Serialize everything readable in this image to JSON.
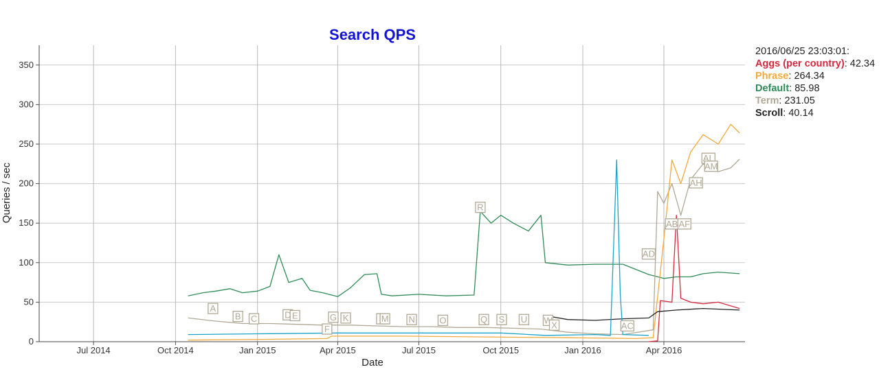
{
  "chart_data": {
    "type": "line",
    "title": "Search QPS",
    "xlabel": "Date",
    "ylabel": "Queries / sec",
    "ylim": [
      0,
      375
    ],
    "yticks": [
      0,
      50,
      100,
      150,
      200,
      250,
      300,
      350
    ],
    "xlim": [
      "2014-05-01",
      "2016-07-01"
    ],
    "xticks": [
      {
        "date": "2014-07-01",
        "label": "Jul 2014"
      },
      {
        "date": "2014-10-01",
        "label": "Oct 2014"
      },
      {
        "date": "2015-01-01",
        "label": "Jan 2015"
      },
      {
        "date": "2015-04-01",
        "label": "Apr 2015"
      },
      {
        "date": "2015-07-01",
        "label": "Jul 2015"
      },
      {
        "date": "2015-10-01",
        "label": "Oct 2015"
      },
      {
        "date": "2016-01-01",
        "label": "Jan 2016"
      },
      {
        "date": "2016-04-01",
        "label": "Apr 2016"
      }
    ],
    "grid": true,
    "legend_placement": "top-right outside",
    "legend_timestamp": "2016/06/25 23:03:01:",
    "series": [
      {
        "name": "Default",
        "color": "#2e8b57",
        "value_text": "85.98",
        "points": [
          [
            "2014-10-15",
            58
          ],
          [
            "2014-11-01",
            62
          ],
          [
            "2014-11-15",
            64
          ],
          [
            "2014-12-01",
            67
          ],
          [
            "2014-12-15",
            62
          ],
          [
            "2015-01-01",
            64
          ],
          [
            "2015-01-15",
            70
          ],
          [
            "2015-01-25",
            110
          ],
          [
            "2015-02-05",
            75
          ],
          [
            "2015-02-20",
            80
          ],
          [
            "2015-03-01",
            65
          ],
          [
            "2015-03-15",
            62
          ],
          [
            "2015-04-01",
            57
          ],
          [
            "2015-04-15",
            68
          ],
          [
            "2015-05-01",
            85
          ],
          [
            "2015-05-15",
            86
          ],
          [
            "2015-05-20",
            60
          ],
          [
            "2015-06-01",
            58
          ],
          [
            "2015-07-01",
            60
          ],
          [
            "2015-08-01",
            58
          ],
          [
            "2015-09-01",
            59
          ],
          [
            "2015-09-08",
            165
          ],
          [
            "2015-09-20",
            150
          ],
          [
            "2015-10-01",
            160
          ],
          [
            "2015-10-15",
            150
          ],
          [
            "2015-11-01",
            140
          ],
          [
            "2015-11-15",
            160
          ],
          [
            "2015-11-20",
            100
          ],
          [
            "2015-12-15",
            97
          ],
          [
            "2016-01-15",
            98
          ],
          [
            "2016-02-15",
            98
          ],
          [
            "2016-03-15",
            85
          ],
          [
            "2016-04-01",
            80
          ],
          [
            "2016-04-15",
            82
          ],
          [
            "2016-05-01",
            82
          ],
          [
            "2016-05-15",
            86
          ],
          [
            "2016-06-01",
            88
          ],
          [
            "2016-06-25",
            86
          ]
        ]
      },
      {
        "name": "Term",
        "color": "#b0a894",
        "value_text": "231.05",
        "points": [
          [
            "2014-10-15",
            30
          ],
          [
            "2014-11-15",
            26
          ],
          [
            "2014-12-15",
            23
          ],
          [
            "2015-01-15",
            23
          ],
          [
            "2015-02-15",
            22
          ],
          [
            "2015-03-15",
            21
          ],
          [
            "2015-04-15",
            21
          ],
          [
            "2015-05-15",
            20
          ],
          [
            "2015-06-15",
            19
          ],
          [
            "2015-07-15",
            19
          ],
          [
            "2015-08-15",
            18
          ],
          [
            "2015-09-15",
            18
          ],
          [
            "2015-10-15",
            17
          ],
          [
            "2015-11-15",
            16
          ],
          [
            "2015-12-15",
            12
          ],
          [
            "2016-01-15",
            10
          ],
          [
            "2016-02-15",
            9
          ],
          [
            "2016-03-20",
            15
          ],
          [
            "2016-03-25",
            190
          ],
          [
            "2016-04-01",
            175
          ],
          [
            "2016-04-10",
            200
          ],
          [
            "2016-04-20",
            160
          ],
          [
            "2016-05-01",
            205
          ],
          [
            "2016-05-15",
            225
          ],
          [
            "2016-06-01",
            215
          ],
          [
            "2016-06-15",
            220
          ],
          [
            "2016-06-25",
            231
          ]
        ]
      },
      {
        "name": "Phrase",
        "color": "#f2a83a",
        "value_text": "264.34",
        "points": [
          [
            "2014-10-15",
            2
          ],
          [
            "2015-01-15",
            3
          ],
          [
            "2015-03-20",
            4
          ],
          [
            "2015-03-25",
            7
          ],
          [
            "2015-06-15",
            7
          ],
          [
            "2015-09-15",
            6
          ],
          [
            "2015-12-15",
            5
          ],
          [
            "2016-03-01",
            4
          ],
          [
            "2016-03-20",
            5
          ],
          [
            "2016-04-01",
            130
          ],
          [
            "2016-04-10",
            230
          ],
          [
            "2016-04-20",
            200
          ],
          [
            "2016-05-01",
            240
          ],
          [
            "2016-05-15",
            262
          ],
          [
            "2016-06-01",
            250
          ],
          [
            "2016-06-15",
            275
          ],
          [
            "2016-06-25",
            264
          ]
        ]
      },
      {
        "name": "Aggs (per country)",
        "color": "#d6273d",
        "value_text": "42.34",
        "points": [
          [
            "2016-03-15",
            0
          ],
          [
            "2016-03-25",
            1
          ],
          [
            "2016-03-28",
            52
          ],
          [
            "2016-04-10",
            50
          ],
          [
            "2016-04-15",
            160
          ],
          [
            "2016-04-20",
            55
          ],
          [
            "2016-05-01",
            50
          ],
          [
            "2016-05-15",
            48
          ],
          [
            "2016-06-01",
            50
          ],
          [
            "2016-06-25",
            42
          ]
        ]
      },
      {
        "name": "Scroll",
        "color": "#222222",
        "value_text": "40.14",
        "points": [
          [
            "2015-11-20",
            33
          ],
          [
            "2015-12-15",
            28
          ],
          [
            "2016-01-15",
            27
          ],
          [
            "2016-02-15",
            29
          ],
          [
            "2016-03-15",
            30
          ],
          [
            "2016-03-25",
            38
          ],
          [
            "2016-04-15",
            40
          ],
          [
            "2016-05-15",
            42
          ],
          [
            "2016-06-25",
            40
          ]
        ]
      },
      {
        "name": "",
        "color": "#1aa3c9",
        "value_text": "",
        "points": [
          [
            "2014-10-15",
            9
          ],
          [
            "2015-01-01",
            10
          ],
          [
            "2015-04-01",
            11
          ],
          [
            "2015-07-01",
            11
          ],
          [
            "2015-10-01",
            11
          ],
          [
            "2015-11-20",
            8
          ],
          [
            "2016-01-15",
            9
          ],
          [
            "2016-02-01",
            8
          ],
          [
            "2016-02-08",
            230
          ],
          [
            "2016-02-12",
            60
          ],
          [
            "2016-02-15",
            9
          ],
          [
            "2016-03-15",
            8
          ]
        ]
      }
    ],
    "annotations": [
      {
        "label": "A",
        "date": "2014-11-12",
        "y": 42
      },
      {
        "label": "B",
        "date": "2014-12-10",
        "y": 32
      },
      {
        "label": "C",
        "date": "2014-12-28",
        "y": 29
      },
      {
        "label": "D",
        "date": "2015-02-04",
        "y": 34
      },
      {
        "label": "E",
        "date": "2015-02-12",
        "y": 33
      },
      {
        "label": "F",
        "date": "2015-03-20",
        "y": 16
      },
      {
        "label": "G",
        "date": "2015-03-27",
        "y": 31
      },
      {
        "label": "K",
        "date": "2015-04-10",
        "y": 30
      },
      {
        "label": "L",
        "date": "2015-05-20",
        "y": 29
      },
      {
        "label": "M",
        "date": "2015-05-24",
        "y": 29
      },
      {
        "label": "N",
        "date": "2015-06-23",
        "y": 28
      },
      {
        "label": "O",
        "date": "2015-07-28",
        "y": 27
      },
      {
        "label": "Q",
        "date": "2015-09-12",
        "y": 28
      },
      {
        "label": "R",
        "date": "2015-09-08",
        "y": 170
      },
      {
        "label": "S",
        "date": "2015-10-02",
        "y": 28
      },
      {
        "label": "U",
        "date": "2015-10-27",
        "y": 28
      },
      {
        "label": "W",
        "date": "2015-11-23",
        "y": 27
      },
      {
        "label": "X",
        "date": "2015-11-30",
        "y": 21
      },
      {
        "label": "AC",
        "date": "2016-02-20",
        "y": 20
      },
      {
        "label": "AD",
        "date": "2016-03-15",
        "y": 111
      },
      {
        "label": "AB",
        "date": "2016-04-10",
        "y": 149
      },
      {
        "label": "AF",
        "date": "2016-04-24",
        "y": 149
      },
      {
        "label": "AH",
        "date": "2016-05-07",
        "y": 201
      },
      {
        "label": "AL",
        "date": "2016-05-21",
        "y": 232
      },
      {
        "label": "AM",
        "date": "2016-05-24",
        "y": 222
      }
    ]
  }
}
